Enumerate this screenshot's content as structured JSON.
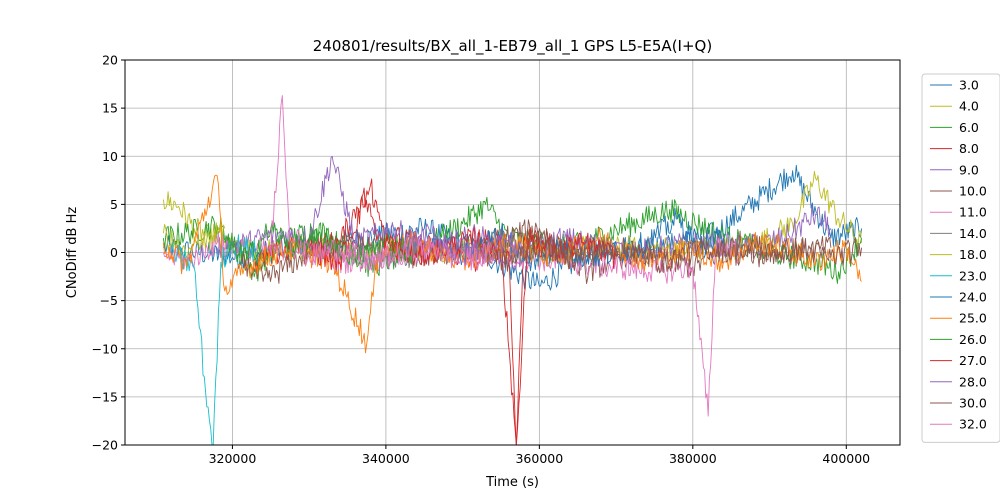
{
  "chart_data": {
    "type": "line",
    "title": "240801/results/BX_all_1-EB79_all_1 GPS L5-E5A(I+Q)",
    "xlabel": "Time (s)",
    "ylabel": "CNoDiff dB Hz",
    "xlim": [
      306000,
      407000
    ],
    "ylim": [
      -20,
      20
    ],
    "xticks": [
      320000,
      340000,
      360000,
      380000,
      400000
    ],
    "xtick_labels": [
      "320000",
      "340000",
      "360000",
      "380000",
      "400000"
    ],
    "yticks": [
      -20,
      -15,
      -10,
      -5,
      0,
      5,
      10,
      15,
      20
    ],
    "ytick_labels": [
      "−20",
      "−15",
      "−10",
      "−5",
      "0",
      "5",
      "10",
      "15",
      "20"
    ],
    "grid": true,
    "legend_position": "outside-right",
    "series": [
      {
        "name": "3.0",
        "color": "#1f77b4",
        "points": [
          [
            311000,
            0.5
          ],
          [
            320000,
            -0.5
          ],
          [
            335000,
            1.2
          ],
          [
            345000,
            2.5
          ],
          [
            352000,
            0.2
          ],
          [
            360000,
            -3.5
          ],
          [
            368000,
            0.8
          ],
          [
            376000,
            0.5
          ],
          [
            383000,
            2
          ],
          [
            393000,
            8.5
          ],
          [
            398000,
            1.5
          ],
          [
            402000,
            2.5
          ]
        ]
      },
      {
        "name": "4.0",
        "color": "#bcbd22",
        "points": [
          [
            311000,
            5.5
          ],
          [
            313000,
            4.8
          ],
          [
            315000,
            2.5
          ],
          [
            318000,
            1
          ],
          [
            320000,
            0.2
          ],
          [
            386000,
            0.5
          ],
          [
            390000,
            1.5
          ],
          [
            393000,
            3
          ],
          [
            396000,
            7.7
          ],
          [
            399000,
            3.5
          ],
          [
            402000,
            1
          ]
        ]
      },
      {
        "name": "6.0",
        "color": "#2ca02c",
        "points": [
          [
            311000,
            1.5
          ],
          [
            318000,
            2.8
          ],
          [
            323000,
            -2
          ],
          [
            326000,
            1
          ],
          [
            331000,
            2.5
          ],
          [
            338000,
            -1.5
          ],
          [
            345000,
            0.5
          ],
          [
            350000,
            3
          ],
          [
            353000,
            5
          ],
          [
            356000,
            1.5
          ],
          [
            364000,
            0.5
          ],
          [
            377000,
            4.5
          ],
          [
            383000,
            2
          ],
          [
            390000,
            0
          ],
          [
            396000,
            -1
          ],
          [
            399000,
            -2
          ],
          [
            402000,
            1.5
          ]
        ]
      },
      {
        "name": "8.0",
        "color": "#d62728",
        "points": [
          [
            323000,
            -1
          ],
          [
            328000,
            0.5
          ],
          [
            334000,
            1
          ],
          [
            337000,
            6
          ],
          [
            339000,
            2
          ],
          [
            346000,
            0.5
          ],
          [
            352000,
            -1
          ],
          [
            355000,
            1
          ],
          [
            357000,
            -20
          ],
          [
            358000,
            2
          ],
          [
            362000,
            0.5
          ],
          [
            366000,
            1
          ]
        ]
      },
      {
        "name": "9.0",
        "color": "#9467bd",
        "points": [
          [
            318000,
            0.5
          ],
          [
            322000,
            1
          ],
          [
            326000,
            2
          ],
          [
            330000,
            1.5
          ],
          [
            333000,
            10
          ],
          [
            336000,
            1
          ],
          [
            341000,
            2.5
          ],
          [
            345000,
            0.5
          ],
          [
            349000,
            1
          ],
          [
            352000,
            2
          ],
          [
            356000,
            -1
          ],
          [
            363000,
            1.5
          ],
          [
            372000,
            0
          ],
          [
            380000,
            1
          ],
          [
            387000,
            0.5
          ],
          [
            392000,
            1.5
          ],
          [
            396000,
            4
          ],
          [
            398000,
            2.5
          ]
        ]
      },
      {
        "name": "10.0",
        "color": "#8c564b",
        "points": [
          [
            320000,
            0.5
          ],
          [
            324000,
            -3
          ],
          [
            330000,
            0
          ],
          [
            336000,
            1
          ],
          [
            344000,
            -0.5
          ],
          [
            350000,
            0.5
          ],
          [
            360000,
            2.5
          ],
          [
            366000,
            -2
          ],
          [
            372000,
            0
          ],
          [
            380000,
            -1.5
          ],
          [
            386000,
            1
          ],
          [
            392000,
            0
          ],
          [
            398000,
            0.5
          ]
        ]
      },
      {
        "name": "11.0",
        "color": "#e377c2",
        "points": [
          [
            311000,
            0
          ],
          [
            314000,
            -1
          ],
          [
            318000,
            1
          ],
          [
            322000,
            0.5
          ],
          [
            326000,
            0
          ],
          [
            328000,
            1.5
          ],
          [
            333000,
            -1
          ],
          [
            341000,
            -0.5
          ],
          [
            348000,
            0.5
          ],
          [
            352000,
            0
          ],
          [
            376000,
            -2
          ],
          [
            380000,
            -1.5
          ],
          [
            382000,
            -17
          ],
          [
            383000,
            1
          ],
          [
            386000,
            0
          ]
        ]
      },
      {
        "name": "14.0",
        "color": "#7f7f7f",
        "points": [
          [
            330000,
            0.5
          ],
          [
            340000,
            -0.5
          ],
          [
            350000,
            0.2
          ],
          [
            360000,
            -0.3
          ],
          [
            370000,
            0.4
          ]
        ]
      },
      {
        "name": "18.0",
        "color": "#bcbd22",
        "points": [
          [
            311000,
            2
          ],
          [
            314000,
            -0.5
          ],
          [
            316000,
            1.5
          ],
          [
            319000,
            2.5
          ]
        ]
      },
      {
        "name": "23.0",
        "color": "#17becf",
        "points": [
          [
            312000,
            0
          ],
          [
            315000,
            -1.5
          ],
          [
            316500,
            -14.5
          ],
          [
            317500,
            -20
          ],
          [
            318500,
            -1
          ],
          [
            320000,
            1
          ],
          [
            323000,
            0
          ]
        ]
      },
      {
        "name": "24.0",
        "color": "#1f77b4",
        "points": [
          [
            346000,
            1.5
          ],
          [
            350000,
            -0.5
          ],
          [
            355000,
            2
          ],
          [
            359000,
            -1
          ],
          [
            362000,
            0.5
          ],
          [
            368000,
            -0.5
          ],
          [
            374000,
            1
          ],
          [
            378000,
            3.5
          ],
          [
            381000,
            0.5
          ],
          [
            384000,
            1.5
          ]
        ]
      },
      {
        "name": "25.0",
        "color": "#ff7f0e",
        "points": [
          [
            311000,
            1
          ],
          [
            314000,
            -1.5
          ],
          [
            318000,
            8
          ],
          [
            319000,
            -4
          ],
          [
            322000,
            -1.5
          ],
          [
            327000,
            0.5
          ],
          [
            333000,
            -1
          ],
          [
            337500,
            -9.5
          ],
          [
            339000,
            0
          ],
          [
            344000,
            1
          ],
          [
            350000,
            -1
          ],
          [
            356000,
            1
          ],
          [
            362000,
            -0.5
          ],
          [
            368000,
            1.5
          ],
          [
            374000,
            -1
          ],
          [
            380000,
            0.5
          ],
          [
            384000,
            -1
          ],
          [
            388000,
            1
          ],
          [
            392000,
            0.5
          ],
          [
            396000,
            -1
          ],
          [
            400000,
            0.5
          ],
          [
            402000,
            -3
          ]
        ]
      },
      {
        "name": "26.0",
        "color": "#2ca02c",
        "points": [
          [
            319000,
            1
          ],
          [
            322000,
            -0.5
          ],
          [
            325000,
            2.5
          ],
          [
            328000,
            0.5
          ],
          [
            332000,
            1.5
          ],
          [
            336000,
            -0.5
          ],
          [
            340000,
            1
          ],
          [
            344000,
            0
          ]
        ]
      },
      {
        "name": "27.0",
        "color": "#d62728",
        "points": [
          [
            330000,
            0.5
          ],
          [
            334000,
            -1
          ],
          [
            338000,
            7
          ],
          [
            340000,
            1
          ],
          [
            344000,
            -0.5
          ],
          [
            352000,
            1.5
          ],
          [
            356000,
            0
          ],
          [
            357000,
            -20
          ],
          [
            358500,
            1.5
          ],
          [
            362000,
            0
          ],
          [
            366000,
            1
          ],
          [
            370000,
            -0.5
          ]
        ]
      },
      {
        "name": "28.0",
        "color": "#9467bd",
        "points": [
          [
            342000,
            0.5
          ],
          [
            346000,
            2
          ],
          [
            350000,
            -0.5
          ],
          [
            354000,
            1.5
          ],
          [
            358000,
            0.5
          ]
        ]
      },
      {
        "name": "30.0",
        "color": "#8c564b",
        "points": [
          [
            352000,
            0.5
          ],
          [
            356000,
            -1
          ],
          [
            360000,
            1
          ],
          [
            364000,
            -0.5
          ],
          [
            370000,
            0.5
          ],
          [
            376000,
            -1
          ],
          [
            382000,
            0.5
          ],
          [
            388000,
            -0.5
          ],
          [
            394000,
            0.5
          ],
          [
            398000,
            -0.5
          ],
          [
            402000,
            0.5
          ]
        ]
      },
      {
        "name": "32.0",
        "color": "#e377c2",
        "points": [
          [
            325000,
            0.5
          ],
          [
            326500,
            16.3
          ],
          [
            327500,
            1
          ],
          [
            330000,
            -0.5
          ],
          [
            334000,
            0.5
          ],
          [
            338000,
            -1
          ],
          [
            342000,
            0
          ],
          [
            346000,
            0.5
          ],
          [
            350000,
            -1
          ],
          [
            354000,
            0
          ]
        ]
      }
    ]
  }
}
